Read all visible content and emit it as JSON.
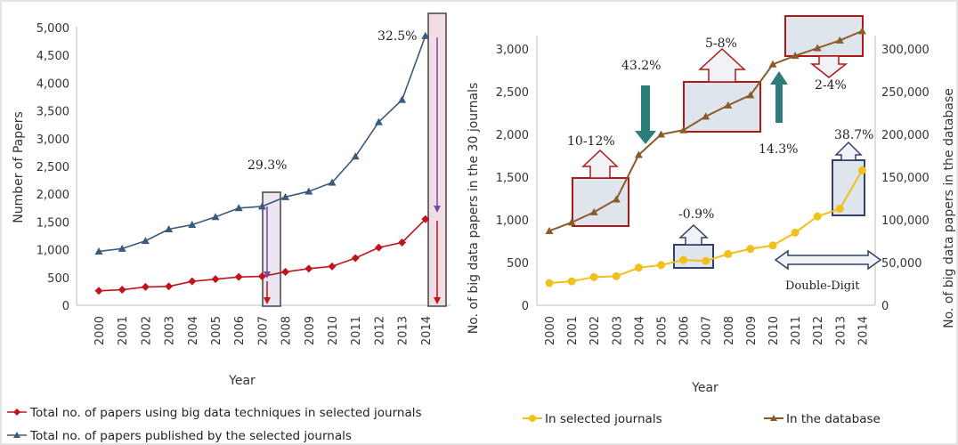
{
  "chart_data": [
    {
      "type": "line",
      "categories": [
        "2000",
        "2001",
        "2002",
        "2003",
        "2004",
        "2005",
        "2006",
        "2007",
        "2008",
        "2009",
        "2010",
        "2011",
        "2012",
        "2013",
        "2014"
      ],
      "xlabel": "Year",
      "ylabel": "Number of Papers",
      "ylim": [
        0,
        5000
      ],
      "yticks": [
        "0",
        "500",
        "1,000",
        "1,500",
        "2,000",
        "2,500",
        "3,000",
        "3,500",
        "4,000",
        "4,500",
        "5,000"
      ],
      "grid": false,
      "legend_position": "bottom",
      "series": [
        {
          "name": "Total no. of papers using big data techniques in selected journals",
          "color": "#c0141c",
          "marker": "diamond",
          "values": [
            260,
            280,
            330,
            340,
            430,
            470,
            510,
            520,
            600,
            660,
            700,
            850,
            1040,
            1130,
            1550
          ]
        },
        {
          "name": "Total no. of papers published  by the selected journals",
          "color": "#3b5a7d",
          "marker": "triangle",
          "values": [
            970,
            1020,
            1160,
            1370,
            1450,
            1590,
            1750,
            1780,
            1950,
            2050,
            2210,
            2680,
            3300,
            3700,
            4850
          ]
        }
      ],
      "annotations": [
        "29.3%",
        "32.5%"
      ]
    },
    {
      "type": "line",
      "categories": [
        "2000",
        "2001",
        "2002",
        "2003",
        "2004",
        "2005",
        "2006",
        "2007",
        "2008",
        "2009",
        "2010",
        "2011",
        "2012",
        "2013",
        "2014"
      ],
      "xlabel": "Year",
      "ylabel": "No. of big data papers in the 30 journals",
      "y2label": "No. of big data papers in the database",
      "ylim": [
        0,
        3000
      ],
      "y2lim": [
        0,
        300000
      ],
      "yticks": [
        "0",
        "500",
        "1,000",
        "1,500",
        "2,000",
        "2,500",
        "3,000"
      ],
      "y2ticks": [
        "0",
        "50,000",
        "100,000",
        "150,000",
        "200,000",
        "250,000",
        "300,000"
      ],
      "grid": false,
      "legend_position": "bottom",
      "series": [
        {
          "name": "In selected journals",
          "color": "#f0c01c",
          "marker": "circle",
          "axis": "left",
          "values": [
            260,
            280,
            330,
            340,
            440,
            470,
            530,
            520,
            600,
            660,
            700,
            850,
            1040,
            1130,
            1580
          ]
        },
        {
          "name": "In the database",
          "color": "#8b5a2b",
          "marker": "triangle",
          "axis": "right",
          "values": [
            87000,
            97000,
            109000,
            124000,
            176000,
            200000,
            205000,
            221000,
            234000,
            246000,
            282000,
            292000,
            301000,
            310000,
            321000
          ]
        }
      ],
      "annotations": [
        "10-12%",
        "43.2%",
        "5-8%",
        "14.3%",
        "2-4%",
        "38.7%",
        "-0.9%",
        "Double-Digit"
      ]
    }
  ]
}
